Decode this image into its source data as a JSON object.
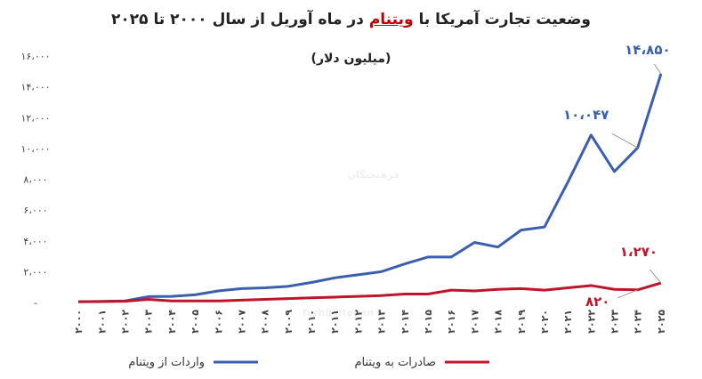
{
  "chart_data": {
    "type": "line",
    "title": [
      "وضعیت تجارت آمریکا با",
      "ویتنام",
      "در ماه آوریل از سال ۲۰۰۰ تا ۲۰۲۵"
    ],
    "subtitle": "(میلیون دلار)",
    "watermark": [
      "فرهیختگان",
      "farhikhtegan"
    ],
    "categories": [
      "۲۰۰۰",
      "۲۰۰۱",
      "۲۰۰۲",
      "۲۰۰۳",
      "۲۰۰۴",
      "۲۰۰۵",
      "۲۰۰۶",
      "۲۰۰۷",
      "۲۰۰۸",
      "۲۰۰۹",
      "۲۰۱۰",
      "۲۰۱۱",
      "۲۰۱۲",
      "۲۰۱۳",
      "۲۰۱۴",
      "۲۰۱۵",
      "۲۰۱۶",
      "۲۰۱۷",
      "۲۰۱۸",
      "۲۰۱۹",
      "۲۰۲۰",
      "۲۰۲۱",
      "۲۰۲۲",
      "۲۰۲۳",
      "۲۰۲۴",
      "۲۰۲۵"
    ],
    "series": [
      {
        "name": "واردات از ویتنام",
        "color": "#3b5fae",
        "values": [
          50,
          70,
          100,
          380,
          400,
          500,
          750,
          900,
          950,
          1050,
          1300,
          1600,
          1800,
          2000,
          2500,
          2950,
          2950,
          3900,
          3600,
          4700,
          4900,
          7800,
          10870,
          8500,
          10047,
          14850
        ],
        "value_labels": [
          null,
          null,
          null,
          null,
          null,
          null,
          null,
          null,
          null,
          null,
          null,
          null,
          null,
          null,
          null,
          null,
          null,
          null,
          null,
          null,
          null,
          null,
          null,
          null,
          "۱۰،۰۴۷",
          "۱۴،۸۵۰"
        ]
      },
      {
        "name": "صادرات به ویتنام",
        "color": "#c0142b",
        "values": [
          50,
          60,
          80,
          200,
          100,
          100,
          100,
          150,
          200,
          250,
          300,
          350,
          400,
          450,
          550,
          550,
          800,
          750,
          850,
          900,
          800,
          950,
          1100,
          850,
          820,
          1270
        ],
        "value_labels": [
          null,
          null,
          null,
          null,
          null,
          null,
          null,
          null,
          null,
          null,
          null,
          null,
          null,
          null,
          null,
          null,
          null,
          null,
          null,
          null,
          null,
          null,
          null,
          null,
          "۸۲۰",
          "۱،۲۷۰"
        ]
      }
    ],
    "ylim": [
      0,
      16000
    ],
    "yticks": [
      {
        "value": 0,
        "label": "-"
      },
      {
        "value": 2000,
        "label": "۲،۰۰۰"
      },
      {
        "value": 4000,
        "label": "۴،۰۰۰"
      },
      {
        "value": 6000,
        "label": "۶،۰۰۰"
      },
      {
        "value": 8000,
        "label": "۸،۰۰۰"
      },
      {
        "value": 10000,
        "label": "۱۰،۰۰۰"
      },
      {
        "value": 12000,
        "label": "۱۲،۰۰۰"
      },
      {
        "value": 14000,
        "label": "۱۴،۰۰۰"
      },
      {
        "value": 16000,
        "label": "۱۶،۰۰۰"
      }
    ],
    "grid": false
  }
}
